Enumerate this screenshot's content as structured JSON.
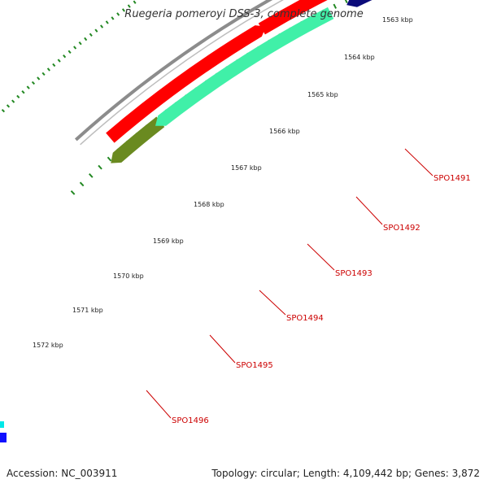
{
  "header": {
    "title": "Ruegeria pomeroyi DSS-3, complete genome"
  },
  "footer": {
    "accession": "Accession: NC_003911",
    "summary": "Topology: circular; Length: 4,109,442 bp; Genes: 3,872"
  },
  "scale": {
    "tick_labels": [
      "1563 kbp",
      "1564 kbp",
      "1565 kbp",
      "1566 kbp",
      "1567 kbp",
      "1568 kbp",
      "1569 kbp",
      "1570 kbp",
      "1571 kbp",
      "1572 kbp"
    ]
  },
  "gene_labels": [
    "SPO1491",
    "SPO1492",
    "SPO1493",
    "SPO1494",
    "SPO1495",
    "SPO1496"
  ],
  "colors": {
    "backbone": "#8c8c8c",
    "forward_gene": "#ff0000",
    "tick": "#228822",
    "label": "#cc0000",
    "steel_blue": "#4f86bd",
    "light_gray": "#c8c8c8",
    "navy": "#0b0b7a",
    "aquamarine": "#40f0a8",
    "olive": "#6a8a20",
    "pink": "#f08a8a",
    "blue": "#1010ff",
    "cyan": "#00e8e8"
  }
}
